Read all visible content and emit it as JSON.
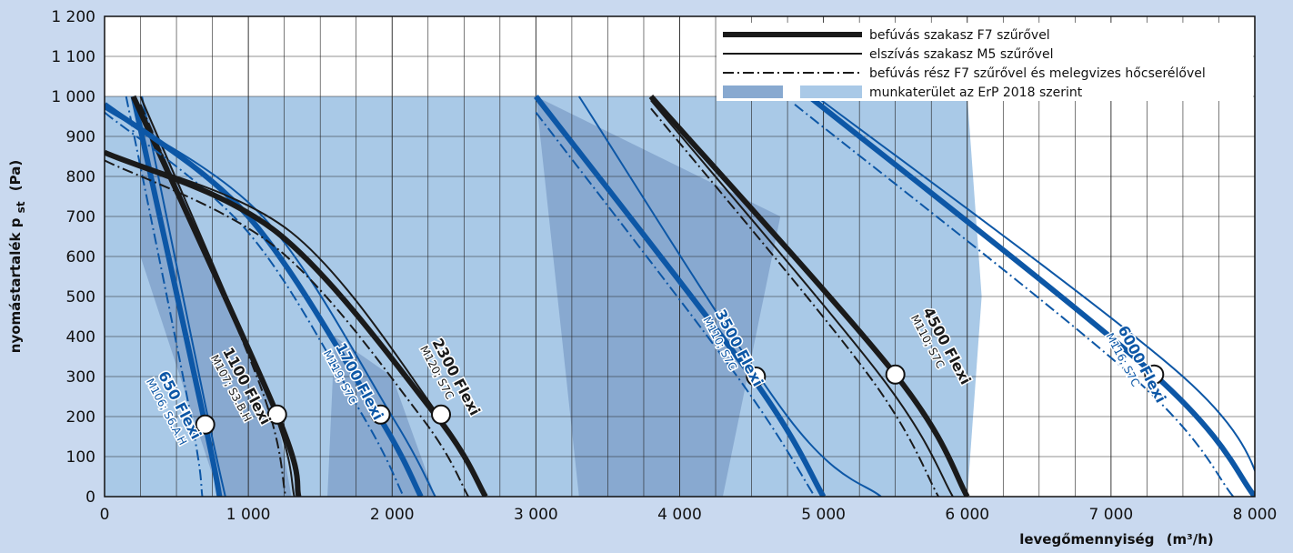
{
  "chart_data": {
    "type": "line",
    "xlabel": "levegőmennyiség",
    "xlabel_unit": "(m³/h)",
    "ylabel": "nyomástartalék p",
    "ylabel_sub": "st",
    "ylabel_unit": "(Pa)",
    "xlim": [
      0,
      8000
    ],
    "ylim": [
      0,
      1200
    ],
    "x_ticks": [
      0,
      1000,
      2000,
      3000,
      4000,
      5000,
      6000,
      7000,
      8000
    ],
    "x_tick_labels": [
      "0",
      "1 000",
      "2 000",
      "3 000",
      "4 000",
      "5 000",
      "6 000",
      "7 000",
      "8 000"
    ],
    "y_ticks": [
      0,
      100,
      200,
      300,
      400,
      500,
      600,
      700,
      800,
      900,
      1000,
      1100,
      1200
    ],
    "y_tick_labels": [
      "0",
      "100",
      "200",
      "300",
      "400",
      "500",
      "600",
      "700",
      "800",
      "900",
      "1 000",
      "1 100",
      "1 200"
    ],
    "grid": true,
    "legend_position": "top-right",
    "legend": [
      {
        "style": "thick",
        "label": "befúvás szakasz F7 szűrővel"
      },
      {
        "style": "thin",
        "label": "elszívás szakasz M5 szűrővel"
      },
      {
        "style": "dashdot",
        "label": "befúvás rész F7 szűrővel és melegvizes hőcserélővel"
      },
      {
        "style": "area",
        "label": "munkaterület az ErP 2018 szerint"
      }
    ],
    "colors": {
      "black": "#1a1a1a",
      "blue": "#0d57a6",
      "area_light": "#a9c9e7",
      "area_dark": "#88a9d0",
      "plot_bg": "#ffffff",
      "page_bg": "#c9d9ef"
    },
    "series": [
      {
        "name": "650 Flexi",
        "code": "M106; S6.A.H",
        "color": "blue",
        "supply": [
          [
            200,
            1000
          ],
          [
            700,
            180
          ],
          [
            800,
            0
          ]
        ],
        "exhaust": [
          [
            260,
            1000
          ],
          [
            700,
            230
          ],
          [
            840,
            0
          ]
        ],
        "heater": [
          [
            150,
            1000
          ],
          [
            600,
            200
          ],
          [
            680,
            0
          ]
        ],
        "nominal": [
          700,
          180
        ]
      },
      {
        "name": "1100 Flexi",
        "code": "M107; S3.B.H",
        "color": "black",
        "supply": [
          [
            200,
            1000
          ],
          [
            1200,
            205
          ],
          [
            1350,
            0
          ]
        ],
        "exhaust": [
          [
            250,
            1000
          ],
          [
            1150,
            240
          ],
          [
            1320,
            0
          ]
        ],
        "heater": [
          [
            250,
            980
          ],
          [
            1080,
            280
          ],
          [
            1260,
            0
          ]
        ],
        "nominal": [
          1200,
          205
        ]
      },
      {
        "name": "1700 Flexi",
        "code": "M119; S7C",
        "color": "blue",
        "supply": [
          [
            0,
            980
          ],
          [
            1000,
            700
          ],
          [
            1900,
            205
          ],
          [
            2200,
            0
          ]
        ],
        "exhaust": [
          [
            0,
            970
          ],
          [
            1100,
            700
          ],
          [
            2000,
            200
          ],
          [
            2300,
            0
          ]
        ],
        "heater": [
          [
            0,
            960
          ],
          [
            1000,
            660
          ],
          [
            1800,
            200
          ],
          [
            2080,
            0
          ]
        ],
        "nominal": [
          1920,
          205
        ]
      },
      {
        "name": "2300 Flexi",
        "code": "M120; S7C",
        "color": "black",
        "supply": [
          [
            0,
            860
          ],
          [
            1200,
            660
          ],
          [
            2300,
            205
          ],
          [
            2650,
            0
          ]
        ],
        "exhaust": [
          [
            0,
            860
          ],
          [
            1300,
            660
          ],
          [
            2350,
            190
          ],
          [
            2650,
            0
          ]
        ],
        "heater": [
          [
            0,
            840
          ],
          [
            1200,
            620
          ],
          [
            2200,
            200
          ],
          [
            2530,
            0
          ]
        ],
        "nominal": [
          2340,
          205
        ]
      },
      {
        "name": "3500 Flexi",
        "code": "M110; S7C",
        "color": "blue",
        "supply": [
          [
            3000,
            1000
          ],
          [
            4500,
            300
          ],
          [
            5000,
            0
          ]
        ],
        "exhaust": [
          [
            3300,
            1000
          ],
          [
            4750,
            200
          ],
          [
            5400,
            0
          ]
        ],
        "heater": [
          [
            3000,
            960
          ],
          [
            4400,
            300
          ],
          [
            4940,
            0
          ]
        ],
        "nominal": [
          4530,
          300
        ]
      },
      {
        "name": "4500 Flexi",
        "code": "M110; S7C",
        "color": "black",
        "supply": [
          [
            3800,
            1000
          ],
          [
            5500,
            305
          ],
          [
            6000,
            0
          ]
        ],
        "exhaust": [
          [
            3800,
            990
          ],
          [
            5400,
            300
          ],
          [
            5900,
            0
          ]
        ],
        "heater": [
          [
            3800,
            970
          ],
          [
            5300,
            310
          ],
          [
            5800,
            0
          ]
        ],
        "nominal": [
          5500,
          305
        ]
      },
      {
        "name": "6000 Flexi",
        "code": "M116; S7C",
        "color": "blue",
        "supply": [
          [
            4900,
            1000
          ],
          [
            7300,
            305
          ],
          [
            8000,
            0
          ]
        ],
        "exhaust": [
          [
            4950,
            1000
          ],
          [
            7500,
            300
          ],
          [
            8080,
            0
          ]
        ],
        "heater": [
          [
            4800,
            980
          ],
          [
            7150,
            300
          ],
          [
            7850,
            0
          ]
        ],
        "nominal": [
          7300,
          305
        ]
      }
    ],
    "work_areas": [
      {
        "shade": "light",
        "points": [
          [
            0,
            1000
          ],
          [
            3000,
            1000
          ],
          [
            3000,
            0
          ],
          [
            0,
            0
          ]
        ]
      },
      {
        "shade": "light",
        "points": [
          [
            3000,
            1000
          ],
          [
            6000,
            1000
          ],
          [
            6100,
            500
          ],
          [
            6000,
            0
          ],
          [
            3000,
            0
          ]
        ]
      },
      {
        "shade": "dark",
        "points": [
          [
            250,
            1000
          ],
          [
            1200,
            200
          ],
          [
            1300,
            0
          ],
          [
            800,
            0
          ],
          [
            250,
            600
          ]
        ]
      },
      {
        "shade": "dark",
        "points": [
          [
            1600,
            400
          ],
          [
            2000,
            300
          ],
          [
            2300,
            0
          ],
          [
            1550,
            0
          ]
        ]
      },
      {
        "shade": "dark",
        "points": [
          [
            3000,
            1000
          ],
          [
            4700,
            700
          ],
          [
            4300,
            0
          ],
          [
            3300,
            0
          ]
        ]
      }
    ]
  }
}
